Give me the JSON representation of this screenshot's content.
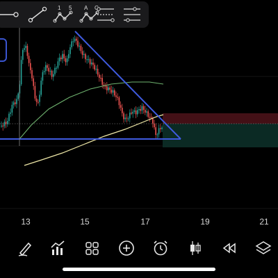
{
  "drawing_tools": [
    {
      "name": "horizontal-ray"
    },
    {
      "name": "trend-line"
    },
    {
      "name": "pattern-1-5",
      "label_a": "1",
      "label_b": "5"
    },
    {
      "name": "pattern-a-c",
      "label_a": "A",
      "label_b": "C"
    },
    {
      "name": "fib-retracement"
    },
    {
      "name": "fib-extension"
    }
  ],
  "x_axis": {
    "labels": [
      "13",
      "15",
      "17",
      "19",
      "21"
    ]
  },
  "bottom_toolbar": [
    {
      "name": "draw-icon"
    },
    {
      "name": "indicators-icon"
    },
    {
      "name": "layouts-icon"
    },
    {
      "name": "add-icon"
    },
    {
      "name": "alarm-icon"
    },
    {
      "name": "candle-type-icon"
    },
    {
      "name": "replay-icon"
    },
    {
      "name": "layers-icon"
    }
  ],
  "colors": {
    "background": "#000000",
    "bullish": "#27a69a",
    "bearish": "#ef5350",
    "trendline": "#3f5be0",
    "ma_long": "#f0e9a8",
    "ma_short": "#6fb36f",
    "short_stop_zone": "#4a1218",
    "short_target_zone": "#0c2c26"
  }
}
